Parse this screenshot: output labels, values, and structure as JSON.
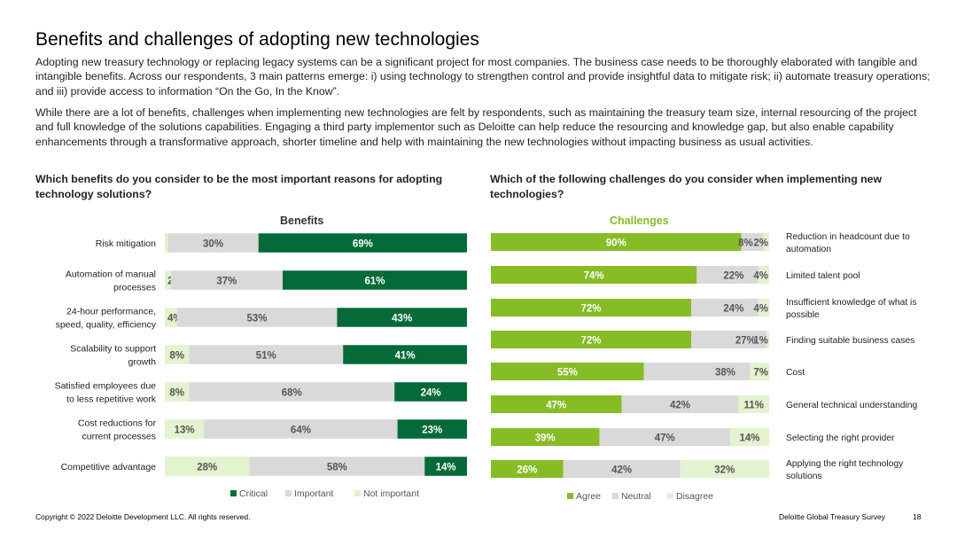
{
  "page": {
    "title": "Benefits and challenges of adopting new technologies",
    "paragraph1": "Adopting new treasury technology or replacing legacy systems can be a significant project for most companies. The business case needs to be thoroughly elaborated with tangible and intangible benefits. Across our respondents, 3 main patterns emerge: i) using technology to strengthen control and provide insightful data to mitigate risk; ii) automate treasury operations; and iii) provide access to information “On the Go, In the Know”.",
    "paragraph2": "While there are a lot of benefits, challenges when implementing new technologies are felt by respondents, such as maintaining the treasury team size, internal resourcing of the project and full knowledge of the solutions capabilities. Engaging a third party implementor such as Deloitte can help reduce the resourcing and knowledge gap, but also enable capability enhancements through a transformative approach, shorter timeline and help with maintaining the new technologies without impacting business as usual activities.",
    "question1": "Which benefits do you consider to be the most important reasons for adopting technology solutions?",
    "question2": "Which of the following challenges do you consider when implementing new technologies?"
  },
  "footer": {
    "copyright": "Copyright © 2022 Deloitte Development LLC. All rights reserved.",
    "survey": "Deloitte Global Treasury Survey",
    "page_number": "18"
  },
  "colors": {
    "critical": "#046a38",
    "important": "#d9d9d9",
    "not_important": "#e3f2cf",
    "agree": "#86bc25",
    "neutral": "#d9d9d9",
    "disagree": "#e3f2cf"
  },
  "chart_data": [
    {
      "type": "bar",
      "orientation": "horizontal",
      "stacked": true,
      "title": "Benefits",
      "xlim": [
        0,
        100
      ],
      "legend_position": "bottom",
      "categories": [
        [
          "Risk mitigation"
        ],
        [
          "Automation of manual",
          "processes"
        ],
        [
          "24-hour performance,",
          "speed, quality, efficiency"
        ],
        [
          "Scalability to support",
          "growth"
        ],
        [
          "Satisfied employees due",
          "to less repetitive work"
        ],
        [
          "Cost reductions for",
          "current processes"
        ],
        [
          "Competitive advantage"
        ]
      ],
      "series": [
        {
          "name": "Not important",
          "values": [
            1,
            2,
            4,
            8,
            8,
            13,
            28
          ]
        },
        {
          "name": "Important",
          "values": [
            30,
            37,
            53,
            51,
            68,
            64,
            58
          ]
        },
        {
          "name": "Critical",
          "values": [
            69,
            61,
            43,
            41,
            24,
            23,
            14
          ]
        }
      ],
      "stack_order": [
        "Not important",
        "Important",
        "Critical"
      ],
      "legend": [
        "Critical",
        "Important",
        "Not important"
      ]
    },
    {
      "type": "bar",
      "orientation": "horizontal",
      "stacked": true,
      "title": "Challenges",
      "xlim": [
        0,
        100
      ],
      "legend_position": "bottom",
      "categories": [
        [
          "Reduction in headcount due to",
          "automation"
        ],
        [
          "Limited talent pool"
        ],
        [
          "Insufficient knowledge of what is",
          "possible"
        ],
        [
          "Finding suitable business cases"
        ],
        [
          "Cost"
        ],
        [
          "General technical understanding"
        ],
        [
          "Selecting the right provider"
        ],
        [
          "Applying the right technology",
          "solutions"
        ]
      ],
      "series": [
        {
          "name": "Agree",
          "values": [
            90,
            74,
            72,
            72,
            55,
            47,
            39,
            26
          ]
        },
        {
          "name": "Neutral",
          "values": [
            8,
            22,
            24,
            27,
            38,
            42,
            47,
            42
          ]
        },
        {
          "name": "Disagree",
          "values": [
            2,
            4,
            4,
            1,
            7,
            11,
            14,
            32
          ]
        }
      ],
      "stack_order": [
        "Agree",
        "Neutral",
        "Disagree"
      ],
      "legend": [
        "Agree",
        "Neutral",
        "Disagree"
      ]
    }
  ]
}
